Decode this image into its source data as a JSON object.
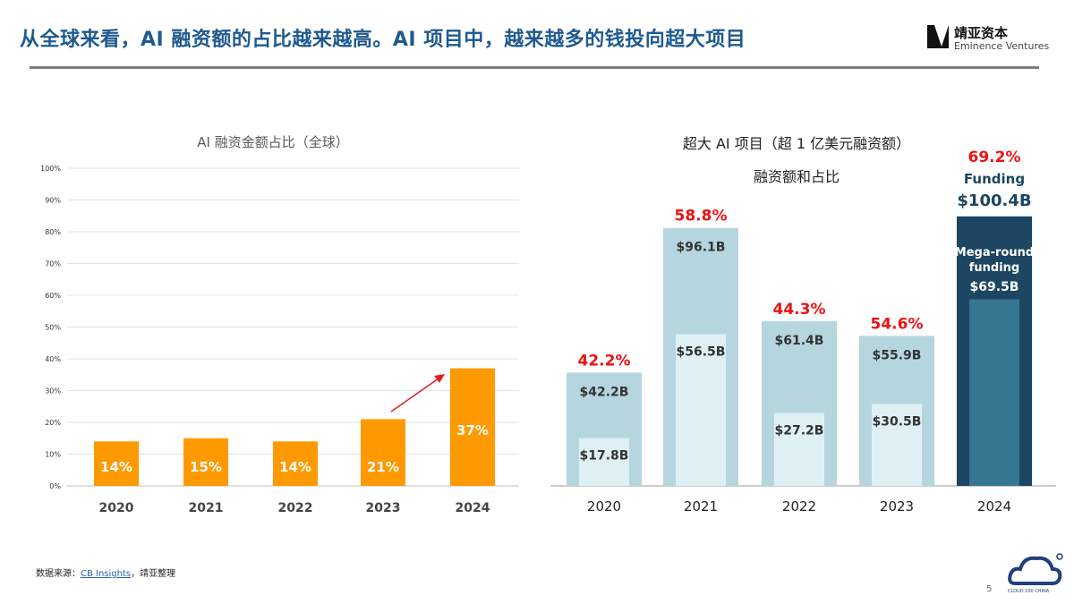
{
  "header": {
    "title": "从全球来看，AI 融资额的占比越来越高。AI 项目中，越来越多的钱投向超大项目",
    "logo_cn": "靖亚资本",
    "logo_en": "Eminence Ventures"
  },
  "footer": {
    "source_prefix": "数据来源：",
    "source_link": "CB Insights",
    "source_suffix": "，靖亚整理",
    "page": "5",
    "badge": "CLOUD 100 CHINA"
  },
  "colors": {
    "title": "#1f5a8f",
    "bar_orange": "#ff9900",
    "arrow": "#e02020",
    "bar_light": "#b6d6df",
    "bar_inner": "#dff0f5",
    "bar_dark": "#1c4661",
    "bar_dark_inner": "#357791",
    "pct_red": "#ee1111"
  },
  "chart_data": [
    {
      "type": "bar",
      "title": "AI 融资金额占比（全球）",
      "categories": [
        "2020",
        "2021",
        "2022",
        "2023",
        "2024"
      ],
      "values": [
        14,
        15,
        14,
        21,
        37
      ],
      "labels": [
        "14%",
        "15%",
        "14%",
        "21%",
        "37%"
      ],
      "ylim": [
        0,
        100
      ],
      "yticks": [
        "0%",
        "10%",
        "20%",
        "30%",
        "40%",
        "50%",
        "60%",
        "70%",
        "80%",
        "90%",
        "100%"
      ],
      "grid": true,
      "annotation": "arrow from 2023 to 2024"
    },
    {
      "type": "bar",
      "title": "超大 AI 项目（超 1 亿美元融资额）",
      "subtitle": "融资额和占比",
      "categories": [
        "2020",
        "2021",
        "2022",
        "2023",
        "2024"
      ],
      "series": [
        {
          "values": [
            42.2,
            96.1,
            61.4,
            55.9,
            100.4
          ],
          "labels": [
            "$42.2B",
            "$96.1B",
            "$61.4B",
            "$55.9B",
            "$100.4B"
          ]
        },
        {
          "values": [
            17.8,
            56.5,
            27.2,
            30.5,
            69.5
          ],
          "labels": [
            "$17.8B",
            "$56.5B",
            "$27.2B",
            "$30.5B",
            "$69.5B"
          ]
        }
      ],
      "shares": [
        "42.2%",
        "58.8%",
        "44.3%",
        "54.6%",
        "69.2%"
      ],
      "annotations": {
        "funding": "Funding",
        "mega": "Mega-round funding"
      },
      "ylim": [
        0,
        100.4
      ],
      "grid": false
    }
  ]
}
